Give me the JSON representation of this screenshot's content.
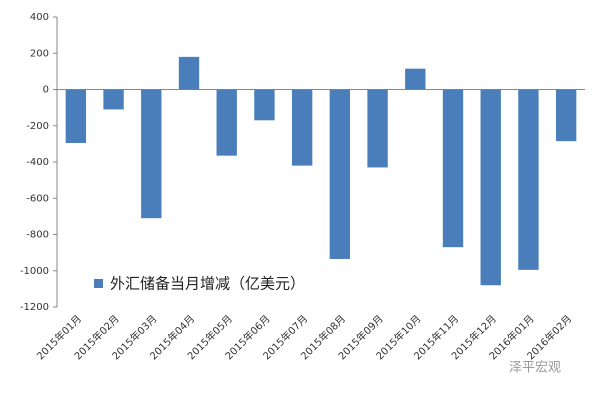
{
  "chart_data": {
    "type": "bar",
    "categories": [
      "2015年01月",
      "2015年02月",
      "2015年03月",
      "2015年04月",
      "2015年05月",
      "2015年06月",
      "2015年07月",
      "2015年08月",
      "2015年09月",
      "2015年10月",
      "2015年11月",
      "2015年12月",
      "2016年01月",
      "2016年02月"
    ],
    "series": [
      {
        "name": "外汇储备当月增减（亿美元）",
        "color": "#4a7ebb",
        "values": [
          -295,
          -110,
          -710,
          180,
          -365,
          -170,
          -420,
          -935,
          -430,
          115,
          -870,
          -1080,
          -995,
          -285
        ]
      }
    ],
    "ylim": [
      -1200,
      400
    ],
    "yticks": [
      -1200,
      -1000,
      -800,
      -600,
      -400,
      -200,
      0,
      200,
      400
    ],
    "watermark": "泽平宏观"
  }
}
